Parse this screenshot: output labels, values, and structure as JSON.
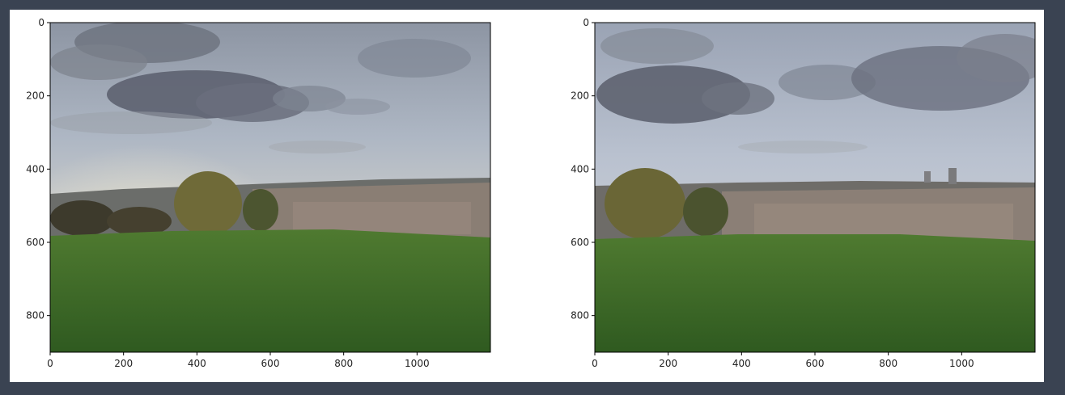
{
  "figure": {
    "panels": [
      {
        "id": "left",
        "image_alt": "",
        "x_ticks": [
          "0",
          "200",
          "400",
          "600",
          "800",
          "1000"
        ],
        "y_ticks": [
          "0",
          "200",
          "400",
          "600",
          "800"
        ]
      },
      {
        "id": "right",
        "image_alt": "",
        "x_ticks": [
          "0",
          "200",
          "400",
          "600",
          "800",
          "1000"
        ],
        "y_ticks": [
          "0",
          "200",
          "400",
          "600",
          "800"
        ]
      }
    ]
  },
  "colors": {
    "page_background": "#3a4352",
    "cell_background": "#ffffff",
    "axis": "#000000",
    "tick_text": "#222222"
  }
}
